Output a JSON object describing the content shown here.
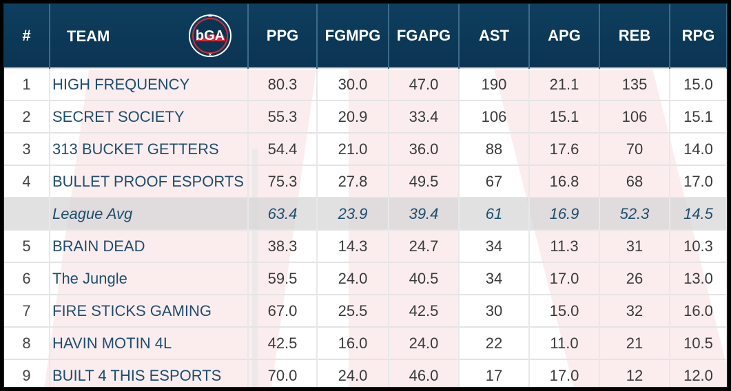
{
  "headers": {
    "rank": "#",
    "team": "TEAM",
    "logo_text": "bGA",
    "ppg": "PPG",
    "fgmpg": "FGMPG",
    "fgapg": "FGAPG",
    "ast": "AST",
    "apg": "APG",
    "reb": "REB",
    "rpg": "RPG"
  },
  "rows": [
    {
      "rank": "1",
      "team": "HIGH FREQUENCY",
      "ppg": "80.3",
      "fgmpg": "30.0",
      "fgapg": "47.0",
      "ast": "190",
      "apg": "21.1",
      "reb": "135",
      "rpg": "15.0"
    },
    {
      "rank": "2",
      "team": "SECRET SOCIETY",
      "ppg": "55.3",
      "fgmpg": "20.9",
      "fgapg": "33.4",
      "ast": "106",
      "apg": "15.1",
      "reb": "106",
      "rpg": "15.1"
    },
    {
      "rank": "3",
      "team": "313 BUCKET GETTERS",
      "ppg": "54.4",
      "fgmpg": "21.0",
      "fgapg": "36.0",
      "ast": "88",
      "apg": "17.6",
      "reb": "70",
      "rpg": "14.0"
    },
    {
      "rank": "4",
      "team": "BULLET PROOF ESPORTS",
      "ppg": "75.3",
      "fgmpg": "27.8",
      "fgapg": "49.5",
      "ast": "67",
      "apg": "16.8",
      "reb": "68",
      "rpg": "17.0"
    },
    {
      "rank": "",
      "team": "League Avg",
      "ppg": "63.4",
      "fgmpg": "23.9",
      "fgapg": "39.4",
      "ast": "61",
      "apg": "16.9",
      "reb": "52.3",
      "rpg": "14.5"
    },
    {
      "rank": "5",
      "team": "BRAIN DEAD",
      "ppg": "38.3",
      "fgmpg": "14.3",
      "fgapg": "24.7",
      "ast": "34",
      "apg": "11.3",
      "reb": "31",
      "rpg": "10.3"
    },
    {
      "rank": "6",
      "team": "The Jungle",
      "ppg": "59.5",
      "fgmpg": "24.0",
      "fgapg": "40.5",
      "ast": "34",
      "apg": "17.0",
      "reb": "26",
      "rpg": "13.0"
    },
    {
      "rank": "7",
      "team": "FIRE STICKS GAMING",
      "ppg": "67.0",
      "fgmpg": "25.5",
      "fgapg": "42.5",
      "ast": "30",
      "apg": "15.0",
      "reb": "32",
      "rpg": "16.0"
    },
    {
      "rank": "8",
      "team": "HAVIN MOTIN 4L",
      "ppg": "42.5",
      "fgmpg": "16.0",
      "fgapg": "24.0",
      "ast": "22",
      "apg": "11.0",
      "reb": "21",
      "rpg": "10.5"
    },
    {
      "rank": "9",
      "team": "BUILT 4 THIS ESPORTS",
      "ppg": "70.0",
      "fgmpg": "24.0",
      "fgapg": "46.0",
      "ast": "17",
      "apg": "17.0",
      "reb": "12",
      "rpg": "12.0"
    }
  ],
  "colors": {
    "header_bg": "#0e3e5e",
    "team_text": "#1e4d6e",
    "logo_red": "#d8283a",
    "avg_row_bg": "#dcdcdc",
    "watermark": "#f2c9ce"
  }
}
